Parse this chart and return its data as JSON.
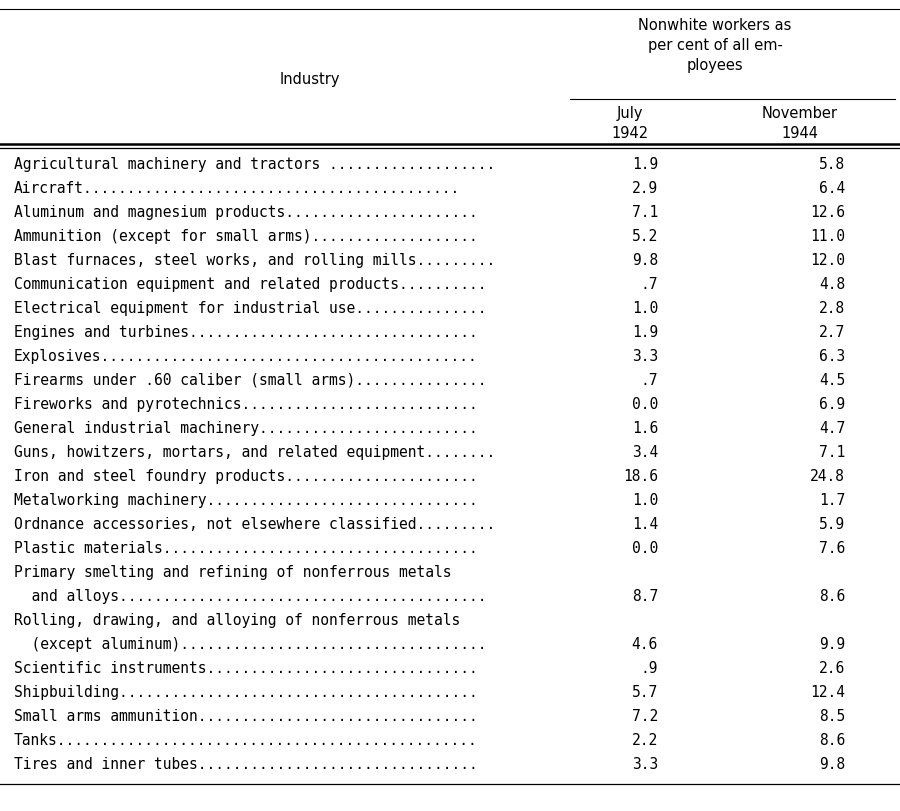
{
  "header_col": "Industry",
  "header_group": "Nonwhite workers as\nper cent of all em-\nployees",
  "col1_header": "July\n1942",
  "col2_header": "November\n1944",
  "rows": [
    [
      "Agricultural machinery and tractors ...................",
      "1.9",
      "5.8"
    ],
    [
      "Aircraft...........................................",
      "2.9",
      "6.4"
    ],
    [
      "Aluminum and magnesium products......................",
      "7.1",
      "12.6"
    ],
    [
      "Ammunition (except for small arms)...................",
      "5.2",
      "11.0"
    ],
    [
      "Blast furnaces, steel works, and rolling mills.........",
      "9.8",
      "12.0"
    ],
    [
      "Communication equipment and related products..........",
      ".7",
      "4.8"
    ],
    [
      "Electrical equipment for industrial use...............",
      "1.0",
      "2.8"
    ],
    [
      "Engines and turbines.................................",
      "1.9",
      "2.7"
    ],
    [
      "Explosives...........................................",
      "3.3",
      "6.3"
    ],
    [
      "Firearms under .60 caliber (small arms)...............",
      ".7",
      "4.5"
    ],
    [
      "Fireworks and pyrotechnics...........................",
      "0.0",
      "6.9"
    ],
    [
      "General industrial machinery.........................",
      "1.6",
      "4.7"
    ],
    [
      "Guns, howitzers, mortars, and related equipment........",
      "3.4",
      "7.1"
    ],
    [
      "Iron and steel foundry products......................",
      "18.6",
      "24.8"
    ],
    [
      "Metalworking machinery...............................",
      "1.0",
      "1.7"
    ],
    [
      "Ordnance accessories, not elsewhere classified.........",
      "1.4",
      "5.9"
    ],
    [
      "Plastic materials....................................",
      "0.0",
      "7.6"
    ],
    [
      "Primary smelting and refining of nonferrous metals",
      "",
      ""
    ],
    [
      "  and alloys..........................................",
      "8.7",
      "8.6"
    ],
    [
      "Rolling, drawing, and alloying of nonferrous metals",
      "",
      ""
    ],
    [
      "  (except aluminum)...................................",
      "4.6",
      "9.9"
    ],
    [
      "Scientific instruments...............................",
      ".9",
      "2.6"
    ],
    [
      "Shipbuilding.........................................",
      "5.7",
      "12.4"
    ],
    [
      "Small arms ammunition................................",
      "7.2",
      "8.5"
    ],
    [
      "Tanks................................................",
      "2.2",
      "8.6"
    ],
    [
      "Tires and inner tubes................................",
      "3.3",
      "9.8"
    ]
  ],
  "bg_color": "#ffffff",
  "text_color": "#000000",
  "font_size": 10.5,
  "header_font_size": 11
}
